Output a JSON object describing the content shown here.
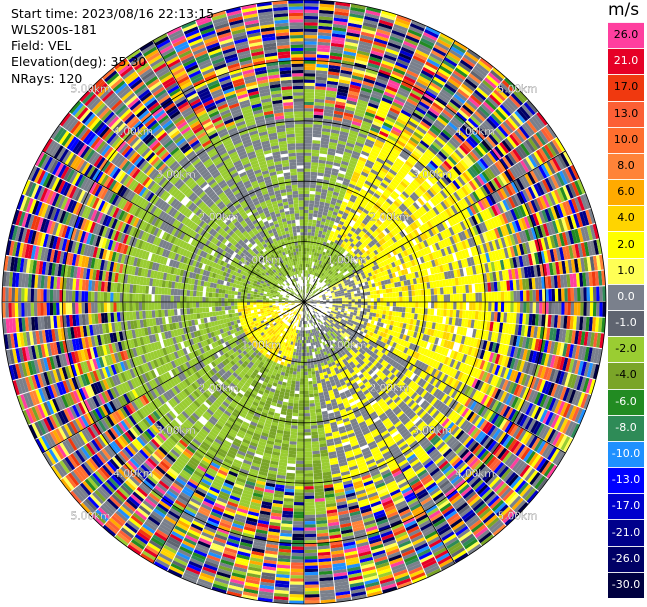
{
  "header": {
    "start_time": "Start time: 2023/08/16 22:13:15",
    "instrument": "WLS200s-181",
    "field": "Field: VEL",
    "elevation": "Elevation(deg): 35.30",
    "nrays": "NRays: 120"
  },
  "colorbar": {
    "unit": "m/s",
    "levels": [
      {
        "label": "26.0",
        "color": "#ff3f9f"
      },
      {
        "label": "21.0",
        "color": "#e60026"
      },
      {
        "label": "17.0",
        "color": "#f0390f"
      },
      {
        "label": "13.0",
        "color": "#fc5f35"
      },
      {
        "label": "10.0",
        "color": "#ff6e2e"
      },
      {
        "label": "8.0",
        "color": "#ff8338"
      },
      {
        "label": "6.0",
        "color": "#ffaa00"
      },
      {
        "label": "4.0",
        "color": "#ffd400"
      },
      {
        "label": "2.0",
        "color": "#ffff00"
      },
      {
        "label": "1.0",
        "color": "#ffff55"
      },
      {
        "label": "0.0",
        "color": "#7a808c"
      },
      {
        "label": "-1.0",
        "color": "#5f6470"
      },
      {
        "label": "-2.0",
        "color": "#9acd32"
      },
      {
        "label": "-4.0",
        "color": "#7aa528"
      },
      {
        "label": "-6.0",
        "color": "#228b22"
      },
      {
        "label": "-8.0",
        "color": "#2e8b57"
      },
      {
        "label": "-10.0",
        "color": "#1e90ff"
      },
      {
        "label": "-13.0",
        "color": "#0000ff"
      },
      {
        "label": "-17.0",
        "color": "#0000cd"
      },
      {
        "label": "-21.0",
        "color": "#00008b"
      },
      {
        "label": "-26.0",
        "color": "#000066"
      },
      {
        "label": "-30.0",
        "color": "#000040"
      }
    ]
  },
  "chart_data": {
    "type": "heatmap",
    "field": "VEL",
    "nrays": 120,
    "range_ring_labels": [
      "1.00km",
      "2.00km",
      "3.00km",
      "4.00km",
      "5.00km"
    ],
    "range_rings_km": [
      1,
      2,
      3,
      4,
      5
    ],
    "max_range_km": 5.0,
    "azimuth_spokes_deg": [
      0,
      30,
      60,
      90,
      120,
      150,
      180,
      210,
      240,
      270,
      300,
      330
    ],
    "regions": [
      {
        "description": "inner north-west",
        "value_range": [
          -4.0,
          -1.0
        ]
      },
      {
        "description": "inner north-east to east",
        "value_range": [
          1.0,
          4.0
        ]
      },
      {
        "description": "inner south-west",
        "value_range": [
          1.0,
          4.0
        ]
      },
      {
        "description": "inner south to south-east",
        "value_range": [
          -1.0,
          0.0
        ]
      },
      {
        "description": "mid west and south",
        "value_range": [
          -4.0,
          -2.0
        ]
      },
      {
        "description": "outer ring",
        "value_range": [
          -30.0,
          26.0
        ]
      }
    ]
  }
}
